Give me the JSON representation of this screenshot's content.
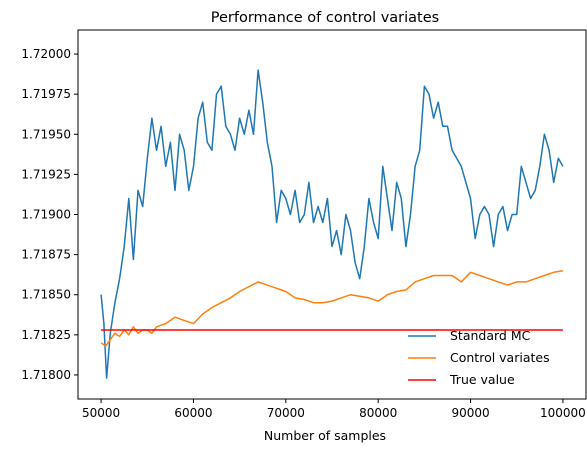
{
  "chart_data": {
    "type": "line",
    "title": "Performance of control variates",
    "xlabel": "Number of samples",
    "ylabel": "",
    "xlim": [
      47500,
      102500
    ],
    "ylim": [
      1.71785,
      1.72015
    ],
    "xticks": [
      50000,
      60000,
      70000,
      80000,
      90000,
      100000
    ],
    "xtick_labels": [
      "50000",
      "60000",
      "70000",
      "80000",
      "90000",
      "100000"
    ],
    "yticks": [
      1.718,
      1.71825,
      1.7185,
      1.71875,
      1.719,
      1.71925,
      1.7195,
      1.71975,
      1.72
    ],
    "ytick_labels": [
      "1.71800",
      "1.71825",
      "1.71850",
      "1.71875",
      "1.71900",
      "1.71925",
      "1.71950",
      "1.71975",
      "1.72000"
    ],
    "legend_position": "lower-right",
    "grid": false,
    "series": [
      {
        "name": "Standard MC",
        "color": "#1f77b4",
        "x": [
          50000,
          50300,
          50600,
          51000,
          51500,
          52000,
          52500,
          53000,
          53500,
          54000,
          54500,
          55000,
          55500,
          56000,
          56500,
          57000,
          57500,
          58000,
          58500,
          59000,
          59500,
          60000,
          60500,
          61000,
          61500,
          62000,
          62500,
          63000,
          63500,
          64000,
          64500,
          65000,
          65500,
          66000,
          66500,
          67000,
          67500,
          68000,
          68500,
          69000,
          69500,
          70000,
          70500,
          71000,
          71500,
          72000,
          72500,
          73000,
          73500,
          74000,
          74500,
          75000,
          75500,
          76000,
          76500,
          77000,
          77500,
          78000,
          78500,
          79000,
          79500,
          80000,
          80500,
          81000,
          81500,
          82000,
          82500,
          83000,
          83500,
          84000,
          84500,
          85000,
          85500,
          86000,
          86500,
          87000,
          87500,
          88000,
          88500,
          89000,
          89500,
          90000,
          90500,
          91000,
          91500,
          92000,
          92500,
          93000,
          93500,
          94000,
          94500,
          95000,
          95500,
          96000,
          96500,
          97000,
          97500,
          98000,
          98500,
          99000,
          99500,
          100000
        ],
        "values": [
          1.7185,
          1.71832,
          1.71798,
          1.71826,
          1.71845,
          1.7186,
          1.7188,
          1.7191,
          1.71872,
          1.71915,
          1.71905,
          1.71935,
          1.7196,
          1.7194,
          1.71955,
          1.7193,
          1.71945,
          1.71915,
          1.7195,
          1.7194,
          1.71915,
          1.7193,
          1.7196,
          1.7197,
          1.71945,
          1.7194,
          1.71975,
          1.7198,
          1.71955,
          1.7195,
          1.7194,
          1.7196,
          1.7195,
          1.71965,
          1.7195,
          1.7199,
          1.7197,
          1.71945,
          1.7193,
          1.71895,
          1.71915,
          1.7191,
          1.719,
          1.71915,
          1.71895,
          1.719,
          1.7192,
          1.71895,
          1.71905,
          1.71895,
          1.7191,
          1.7188,
          1.7189,
          1.71875,
          1.719,
          1.7189,
          1.7187,
          1.7186,
          1.7188,
          1.7191,
          1.71895,
          1.71885,
          1.7193,
          1.7191,
          1.7189,
          1.7192,
          1.7191,
          1.7188,
          1.719,
          1.7193,
          1.7194,
          1.7198,
          1.71975,
          1.7196,
          1.7197,
          1.71955,
          1.71955,
          1.7194,
          1.71935,
          1.7193,
          1.7192,
          1.7191,
          1.71885,
          1.719,
          1.71905,
          1.719,
          1.7188,
          1.719,
          1.71905,
          1.7189,
          1.719,
          1.719,
          1.7193,
          1.7192,
          1.7191,
          1.71915,
          1.7193,
          1.7195,
          1.7194,
          1.7192,
          1.71935,
          1.7193
        ]
      },
      {
        "name": "Control variates",
        "color": "#ff7f0e",
        "x": [
          50000,
          50500,
          51000,
          51500,
          52000,
          52500,
          53000,
          53500,
          54000,
          54500,
          55000,
          55500,
          56000,
          57000,
          58000,
          59000,
          60000,
          61000,
          62000,
          63000,
          64000,
          65000,
          66000,
          67000,
          68000,
          69000,
          70000,
          71000,
          72000,
          73000,
          74000,
          75000,
          76000,
          77000,
          78000,
          79000,
          80000,
          81000,
          82000,
          83000,
          84000,
          85000,
          86000,
          87000,
          88000,
          89000,
          90000,
          91000,
          92000,
          93000,
          94000,
          95000,
          96000,
          97000,
          98000,
          99000,
          100000
        ],
        "values": [
          1.7182,
          1.71818,
          1.71822,
          1.71826,
          1.71824,
          1.71828,
          1.71825,
          1.7183,
          1.71826,
          1.71828,
          1.71828,
          1.71826,
          1.7183,
          1.71832,
          1.71836,
          1.71834,
          1.71832,
          1.71838,
          1.71842,
          1.71845,
          1.71848,
          1.71852,
          1.71855,
          1.71858,
          1.71856,
          1.71854,
          1.71852,
          1.71848,
          1.71847,
          1.71845,
          1.71845,
          1.71846,
          1.71848,
          1.7185,
          1.71849,
          1.71848,
          1.71846,
          1.7185,
          1.71852,
          1.71853,
          1.71858,
          1.7186,
          1.71862,
          1.71862,
          1.71862,
          1.71858,
          1.71864,
          1.71862,
          1.7186,
          1.71858,
          1.71856,
          1.71858,
          1.71858,
          1.7186,
          1.71862,
          1.71864,
          1.71865
        ]
      },
      {
        "name": "True value",
        "color": "#ff0000",
        "x": [
          50000,
          100000
        ],
        "values": [
          1.71828,
          1.71828
        ]
      }
    ]
  }
}
